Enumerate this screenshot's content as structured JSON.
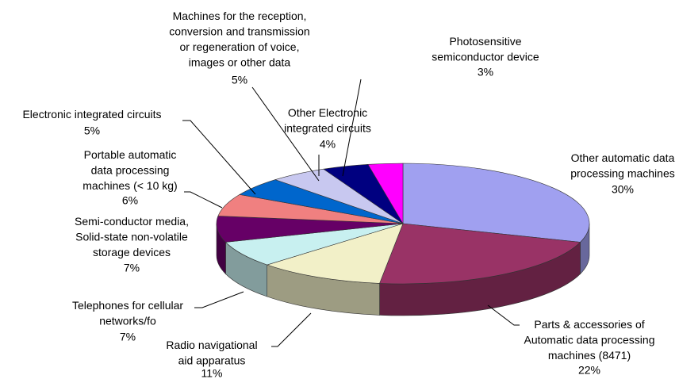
{
  "chart_data": {
    "type": "pie3d",
    "categories": [
      "Other automatic data\nprocessing machines",
      "Parts & accessories of\nAutomatic data processing\nmachines (8471)",
      "Radio navigational\naid apparatus",
      "Telephones for cellular\nnetworks/fo",
      "Semi-conductor media,\nSolid-state non-volatile\nstorage devices",
      "Portable automatic\ndata processing\nmachines (< 10 kg)",
      "Electronic integrated  circuits",
      "Machines for the reception,\nconversion and transmission\nor regeneration of voice,\nimages or other data",
      "Other Electronic\nintegrated  circuits",
      "Photosensitive\nsemiconductor device"
    ],
    "values": [
      30,
      22,
      11,
      7,
      7,
      6,
      5,
      5,
      4,
      3
    ],
    "value_labels": [
      "30%",
      "22%",
      "11%",
      "7%",
      "7%",
      "6%",
      "5%",
      "5%",
      "4%",
      "3%"
    ],
    "colors": [
      "#a0a0f0",
      "#993366",
      "#f2f0c8",
      "#c8f0f0",
      "#660066",
      "#f08080",
      "#0066cc",
      "#c8c8f0",
      "#000080",
      "#ff00ff"
    ]
  }
}
